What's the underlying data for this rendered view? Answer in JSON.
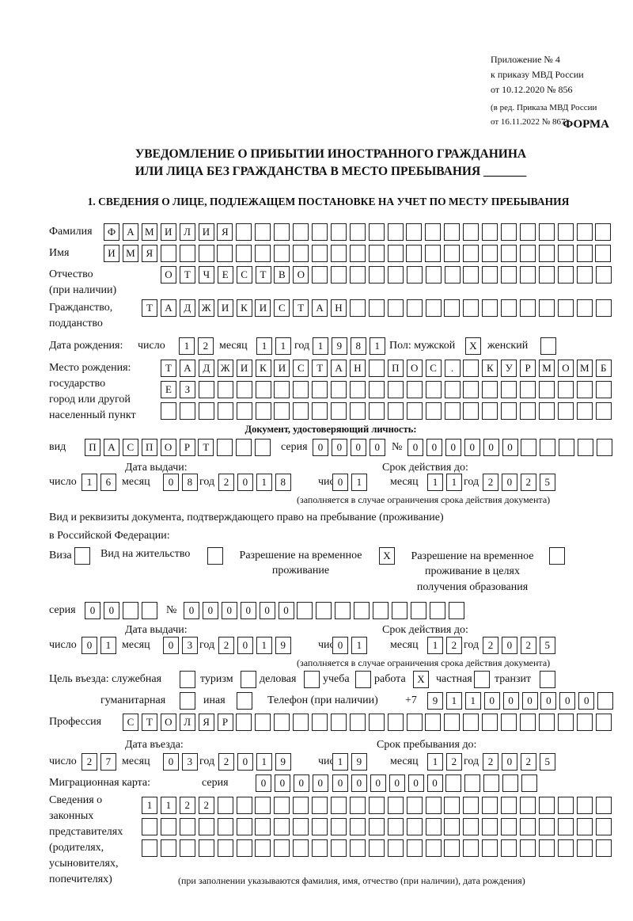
{
  "header": {
    "appendix": "Приложение № 4",
    "order": "к приказу МВД России",
    "order_date": "от 10.12.2020 № 856",
    "revision1": "(в ред. Приказа МВД России",
    "revision2": "от 16.11.2022 № 867)",
    "form_label": "ФОРМА",
    "title1": "УВЕДОМЛЕНИЕ О ПРИБЫТИИ ИНОСТРАННОГО ГРАЖДАНИНА",
    "title2": "ИЛИ ЛИЦА БЕЗ ГРАЖДАНСТВА В МЕСТО ПРЕБЫВАНИЯ _______",
    "section1": "1. СВЕДЕНИЯ О ЛИЦЕ, ПОДЛЕЖАЩЕМ ПОСТАНОВКЕ НА УЧЕТ ПО МЕСТУ ПРЕБЫВАНИЯ"
  },
  "labels": {
    "surname": "Фамилия",
    "name": "Имя",
    "patronymic1": "Отчество",
    "patronymic2": "(при наличии)",
    "citizenship1": "Гражданство,",
    "citizenship2": "подданство",
    "birth_date": "Дата рождения:",
    "day": "число",
    "month": "месяц",
    "year": "год",
    "sex": "Пол: мужской",
    "female": "женский",
    "birthplace1": "Место рождения:",
    "birthplace2": "государство",
    "birthplace3": "город или другой",
    "birthplace4": "населенный пункт",
    "id_doc": "Документ, удостоверяющий личность:",
    "kind": "вид",
    "series": "серия",
    "number": "№",
    "issue_date": "Дата выдачи:",
    "valid_until": "Срок действия до:",
    "validity_note": "(заполняется в случае ограничения срока действия документа)",
    "right_doc1": "Вид и реквизиты документа, подтверждающего право на пребывание (проживание)",
    "right_doc2": "в Российской Федерации:",
    "visa": "Виза",
    "residence": "Вид на жительство",
    "trp1": "Разрешение на временное",
    "trp2": "проживание",
    "trp_edu1": "Разрешение на временное",
    "trp_edu2": "проживание в целях",
    "trp_edu3": "получения образования",
    "purpose": "Цель въезда: служебная",
    "tourism": "туризм",
    "business": "деловая",
    "study": "учеба",
    "work": "работа",
    "private": "частная",
    "transit": "транзит",
    "humanitarian": "гуманитарная",
    "other": "иная",
    "phone": "Телефон (при наличии)",
    "phone_prefix": "+7",
    "profession": "Профессия",
    "entry_date": "Дата въезда:",
    "stay_until": "Срок пребывания до:",
    "migration_card": "Миграционная карта:",
    "reps1": "Сведения о",
    "reps2": "законных",
    "reps3": "представителях",
    "reps4": "(родителях,",
    "reps5": "усыновителях,",
    "reps6": "попечителях)",
    "reps_note": "(при заполнении указываются фамилия, имя, отчество (при наличии), дата рождения)"
  },
  "fields": {
    "surname": "ФАМИЛИЯ",
    "name": "ИМЯ",
    "patronymic": "ОТЧЕСТВО",
    "citizenship": "ТАДЖИКИСТАН",
    "birth_day": "12",
    "birth_month": "11",
    "birth_year": "1981",
    "sex_male": "X",
    "sex_female": "",
    "birthplace_line1": "ТАДЖИКИСТАН ПОС. КУРМОМБ",
    "birthplace_line2": "ЕЗ",
    "birthplace_line3": "",
    "id_kind": "ПАСПОРТ",
    "id_series": "0000",
    "id_number": "000000",
    "id_issue_day": "16",
    "id_issue_month": "08",
    "id_issue_year": "2018",
    "id_valid_day": "01",
    "id_valid_month": "11",
    "id_valid_year": "2025",
    "right_visa": "",
    "right_residence": "",
    "right_trp": "X",
    "right_trp_edu": "",
    "right_series": "00",
    "right_number": "000000",
    "right_issue_day": "01",
    "right_issue_month": "03",
    "right_issue_year": "2019",
    "right_valid_day": "01",
    "right_valid_month": "12",
    "right_valid_year": "2025",
    "purpose_official": "",
    "purpose_tourism": "",
    "purpose_business": "",
    "purpose_study": "",
    "purpose_work": "X",
    "purpose_private": "",
    "purpose_transit": "",
    "purpose_humanitarian": "",
    "purpose_other": "",
    "phone": "911000000",
    "profession": "СТОЛЯР",
    "entry_day": "27",
    "entry_month": "03",
    "entry_year": "2019",
    "stay_day": "19",
    "stay_month": "12",
    "stay_year": "2025",
    "mc_series": "0000",
    "mc_number": "000000",
    "reps_line1": "1122",
    "reps_line2": "",
    "reps_line3": ""
  }
}
